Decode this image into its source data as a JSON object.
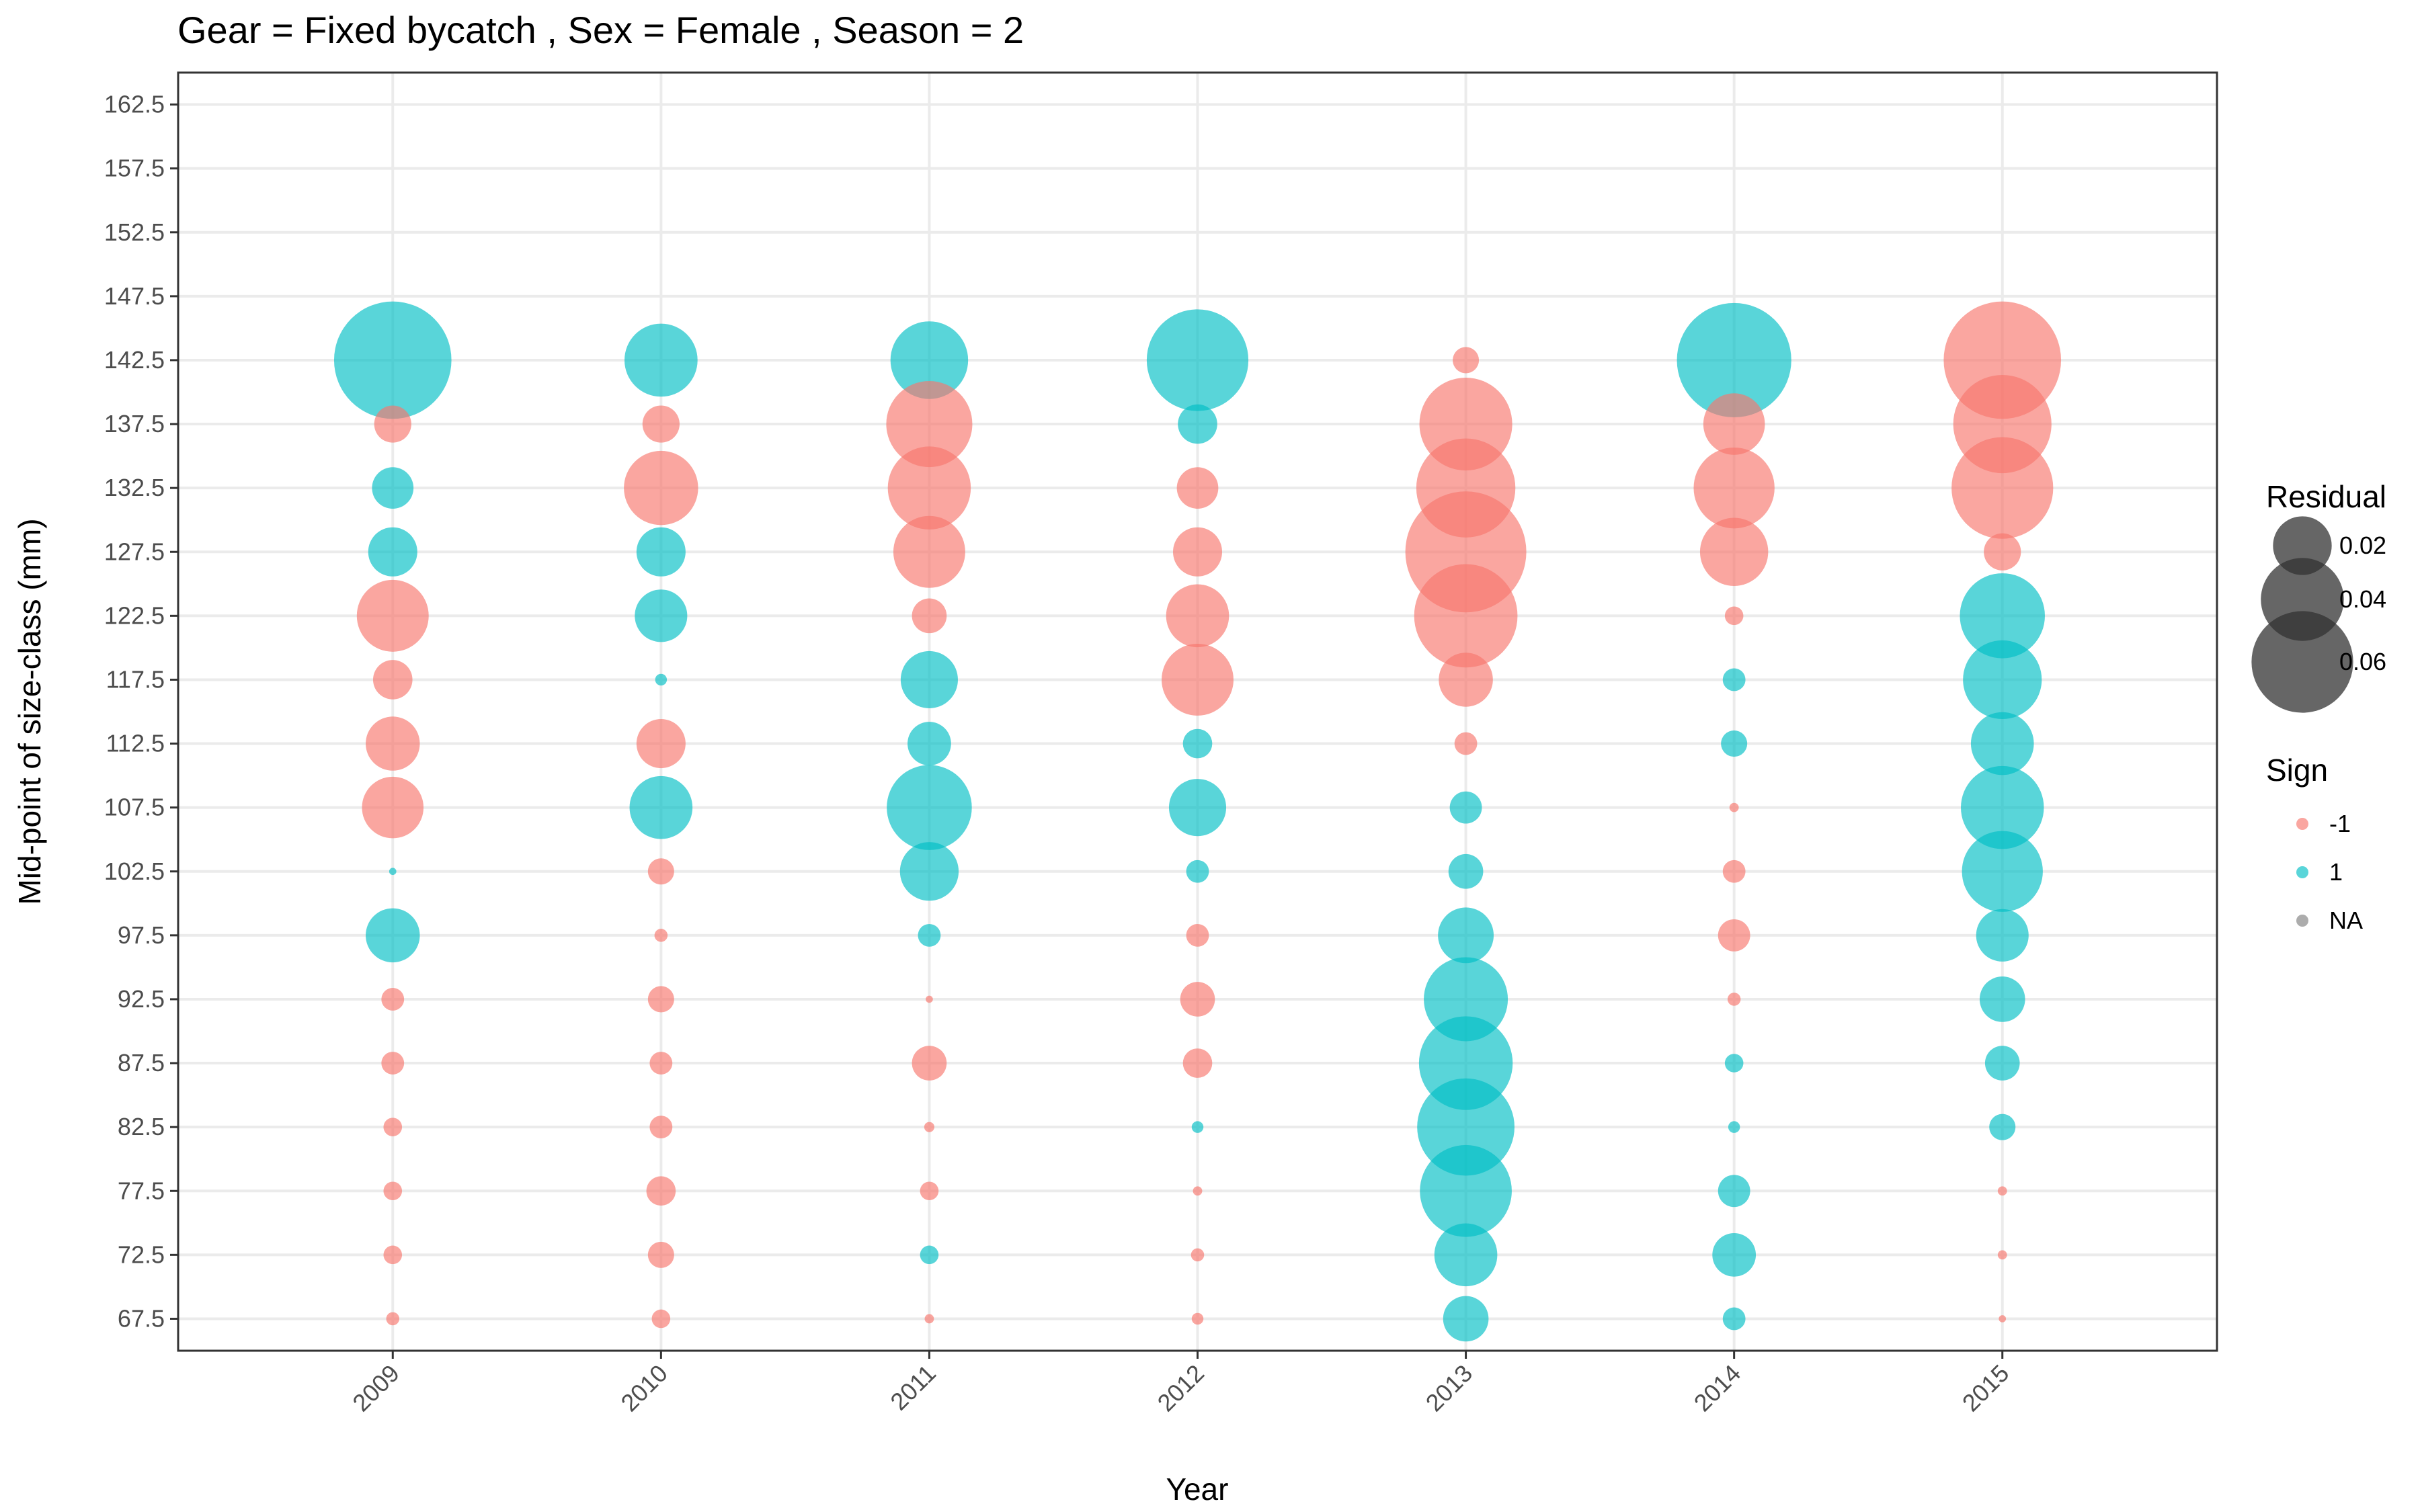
{
  "chart_data": {
    "type": "scatter",
    "title": "Gear = Fixed bycatch , Sex = Female , Season = 2",
    "xlabel": "Year",
    "ylabel": "Mid-point of size-class (mm)",
    "x_categories": [
      "2009",
      "2010",
      "2011",
      "2012",
      "2013",
      "2014",
      "2015"
    ],
    "y_ticks": [
      "67.5",
      "72.5",
      "77.5",
      "82.5",
      "87.5",
      "92.5",
      "97.5",
      "102.5",
      "107.5",
      "112.5",
      "117.5",
      "122.5",
      "127.5",
      "132.5",
      "137.5",
      "142.5",
      "147.5",
      "152.5",
      "157.5",
      "162.5"
    ],
    "ylim": [
      65,
      165
    ],
    "grid": true,
    "colors": {
      "neg": "#F8766D",
      "pos": "#00BFC4",
      "na": "#808080",
      "size_legend": "#333333"
    },
    "size_legend": {
      "title": "Residual",
      "values": [
        0.02,
        0.04,
        0.06
      ],
      "labels": [
        "0.02",
        "0.04",
        "0.06"
      ]
    },
    "sign_legend": {
      "title": "Sign",
      "labels": [
        "-1",
        "1",
        "NA"
      ]
    },
    "legend_position": "right",
    "points_columns": [
      "year",
      "size_class_mm",
      "residual",
      "sign"
    ],
    "points": [
      [
        "2009",
        142.5,
        0.08,
        1
      ],
      [
        "2009",
        137.5,
        0.008,
        -1
      ],
      [
        "2009",
        132.5,
        0.01,
        1
      ],
      [
        "2009",
        127.5,
        0.014,
        1
      ],
      [
        "2009",
        122.5,
        0.03,
        -1
      ],
      [
        "2009",
        117.5,
        0.009,
        -1
      ],
      [
        "2009",
        112.5,
        0.017,
        -1
      ],
      [
        "2009",
        107.5,
        0.022,
        -1
      ],
      [
        "2009",
        102.5,
        0.0003,
        1
      ],
      [
        "2009",
        97.5,
        0.017,
        1
      ],
      [
        "2009",
        92.5,
        0.003,
        -1
      ],
      [
        "2009",
        87.5,
        0.003,
        -1
      ],
      [
        "2009",
        82.5,
        0.002,
        -1
      ],
      [
        "2009",
        77.5,
        0.002,
        -1
      ],
      [
        "2009",
        72.5,
        0.002,
        -1
      ],
      [
        "2009",
        67.5,
        0.001,
        -1
      ],
      [
        "2010",
        142.5,
        0.031,
        1
      ],
      [
        "2010",
        137.5,
        0.008,
        -1
      ],
      [
        "2010",
        132.5,
        0.032,
        -1
      ],
      [
        "2010",
        127.5,
        0.014,
        1
      ],
      [
        "2010",
        122.5,
        0.016,
        1
      ],
      [
        "2010",
        117.5,
        0.0008,
        1
      ],
      [
        "2010",
        112.5,
        0.014,
        -1
      ],
      [
        "2010",
        107.5,
        0.023,
        1
      ],
      [
        "2010",
        102.5,
        0.004,
        -1
      ],
      [
        "2010",
        97.5,
        0.001,
        -1
      ],
      [
        "2010",
        92.5,
        0.004,
        -1
      ],
      [
        "2010",
        87.5,
        0.003,
        -1
      ],
      [
        "2010",
        82.5,
        0.003,
        -1
      ],
      [
        "2010",
        77.5,
        0.005,
        -1
      ],
      [
        "2010",
        72.5,
        0.004,
        -1
      ],
      [
        "2010",
        67.5,
        0.002,
        -1
      ],
      [
        "2011",
        142.5,
        0.035,
        1
      ],
      [
        "2011",
        137.5,
        0.043,
        -1
      ],
      [
        "2011",
        132.5,
        0.04,
        -1
      ],
      [
        "2011",
        127.5,
        0.03,
        -1
      ],
      [
        "2011",
        122.5,
        0.007,
        -1
      ],
      [
        "2011",
        117.5,
        0.019,
        1
      ],
      [
        "2011",
        112.5,
        0.011,
        1
      ],
      [
        "2011",
        107.5,
        0.042,
        1
      ],
      [
        "2011",
        102.5,
        0.02,
        1
      ],
      [
        "2011",
        97.5,
        0.003,
        1
      ],
      [
        "2011",
        92.5,
        0.0003,
        -1
      ],
      [
        "2011",
        87.5,
        0.007,
        -1
      ],
      [
        "2011",
        82.5,
        0.0006,
        -1
      ],
      [
        "2011",
        77.5,
        0.002,
        -1
      ],
      [
        "2011",
        72.5,
        0.002,
        1
      ],
      [
        "2011",
        67.5,
        0.0005,
        -1
      ],
      [
        "2012",
        142.5,
        0.06,
        1
      ],
      [
        "2012",
        137.5,
        0.009,
        1
      ],
      [
        "2012",
        132.5,
        0.01,
        -1
      ],
      [
        "2012",
        127.5,
        0.014,
        -1
      ],
      [
        "2012",
        122.5,
        0.023,
        -1
      ],
      [
        "2012",
        117.5,
        0.03,
        -1
      ],
      [
        "2012",
        112.5,
        0.005,
        1
      ],
      [
        "2012",
        107.5,
        0.019,
        1
      ],
      [
        "2012",
        102.5,
        0.003,
        1
      ],
      [
        "2012",
        97.5,
        0.003,
        -1
      ],
      [
        "2012",
        92.5,
        0.007,
        -1
      ],
      [
        "2012",
        87.5,
        0.005,
        -1
      ],
      [
        "2012",
        82.5,
        0.0008,
        1
      ],
      [
        "2012",
        77.5,
        0.0005,
        -1
      ],
      [
        "2012",
        72.5,
        0.001,
        -1
      ],
      [
        "2012",
        67.5,
        0.0008,
        -1
      ],
      [
        "2013",
        142.5,
        0.004,
        -1
      ],
      [
        "2013",
        137.5,
        0.05,
        -1
      ],
      [
        "2013",
        132.5,
        0.057,
        -1
      ],
      [
        "2013",
        127.5,
        0.085,
        -1
      ],
      [
        "2013",
        122.5,
        0.062,
        -1
      ],
      [
        "2013",
        117.5,
        0.017,
        -1
      ],
      [
        "2013",
        112.5,
        0.003,
        -1
      ],
      [
        "2013",
        107.5,
        0.006,
        1
      ],
      [
        "2013",
        102.5,
        0.007,
        1
      ],
      [
        "2013",
        97.5,
        0.018,
        1
      ],
      [
        "2013",
        92.5,
        0.041,
        1
      ],
      [
        "2013",
        87.5,
        0.051,
        1
      ],
      [
        "2013",
        82.5,
        0.055,
        1
      ],
      [
        "2013",
        77.5,
        0.049,
        1
      ],
      [
        "2013",
        72.5,
        0.023,
        1
      ],
      [
        "2013",
        67.5,
        0.012,
        1
      ],
      [
        "2014",
        142.5,
        0.076,
        1
      ],
      [
        "2014",
        137.5,
        0.022,
        -1
      ],
      [
        "2014",
        132.5,
        0.038,
        -1
      ],
      [
        "2014",
        127.5,
        0.027,
        -1
      ],
      [
        "2014",
        122.5,
        0.002,
        -1
      ],
      [
        "2014",
        117.5,
        0.003,
        1
      ],
      [
        "2014",
        112.5,
        0.004,
        1
      ],
      [
        "2014",
        107.5,
        0.0005,
        -1
      ],
      [
        "2014",
        102.5,
        0.003,
        -1
      ],
      [
        "2014",
        97.5,
        0.006,
        -1
      ],
      [
        "2014",
        92.5,
        0.001,
        -1
      ],
      [
        "2014",
        87.5,
        0.002,
        1
      ],
      [
        "2014",
        82.5,
        0.0008,
        1
      ],
      [
        "2014",
        77.5,
        0.006,
        1
      ],
      [
        "2014",
        72.5,
        0.011,
        1
      ],
      [
        "2014",
        67.5,
        0.003,
        1
      ],
      [
        "2015",
        142.5,
        0.08,
        -1
      ],
      [
        "2015",
        137.5,
        0.056,
        -1
      ],
      [
        "2015",
        132.5,
        0.06,
        -1
      ],
      [
        "2015",
        127.5,
        0.008,
        -1
      ],
      [
        "2015",
        122.5,
        0.042,
        1
      ],
      [
        "2015",
        117.5,
        0.036,
        1
      ],
      [
        "2015",
        112.5,
        0.023,
        1
      ],
      [
        "2015",
        107.5,
        0.04,
        1
      ],
      [
        "2015",
        102.5,
        0.038,
        1
      ],
      [
        "2015",
        97.5,
        0.016,
        1
      ],
      [
        "2015",
        92.5,
        0.012,
        1
      ],
      [
        "2015",
        87.5,
        0.007,
        1
      ],
      [
        "2015",
        82.5,
        0.004,
        1
      ],
      [
        "2015",
        77.5,
        0.0005,
        -1
      ],
      [
        "2015",
        72.5,
        0.0005,
        -1
      ],
      [
        "2015",
        67.5,
        0.0003,
        -1
      ]
    ]
  }
}
